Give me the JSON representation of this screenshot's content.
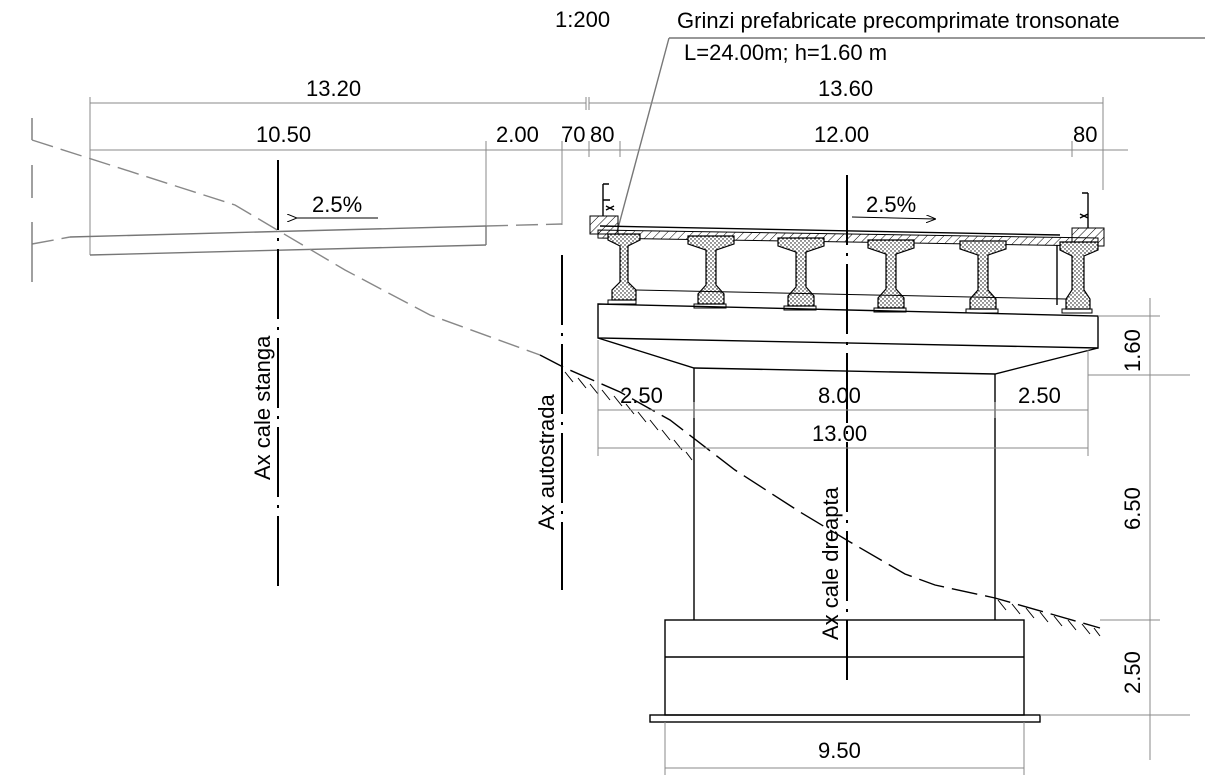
{
  "drawing": {
    "scale": "1:200",
    "note_line1": "Grinzi prefabricate precomprimate tronsonate",
    "note_line2": "L=24.00m; h=1.60 m"
  },
  "dimensions": {
    "left_total": "13.20",
    "left_carriageway": "10.50",
    "left_shoulder": "2.00",
    "left_gap": "70",
    "deck_edge_left": "80",
    "right_total": "13.60",
    "right_carriageway": "12.00",
    "deck_edge_right": "80",
    "cap_overhang_left": "2.50",
    "pier_width": "8.00",
    "cap_overhang_right": "2.50",
    "cap_width": "13.00",
    "footing_width": "9.50",
    "cap_height": "1.60",
    "pier_height": "6.50",
    "footing_height": "2.50"
  },
  "slopes": {
    "left": "2.5%",
    "right": "2.5%"
  },
  "axes": {
    "left_road": "Ax cale stanga",
    "motorway": "Ax autostrada",
    "right_road": "Ax cale dreapta"
  }
}
